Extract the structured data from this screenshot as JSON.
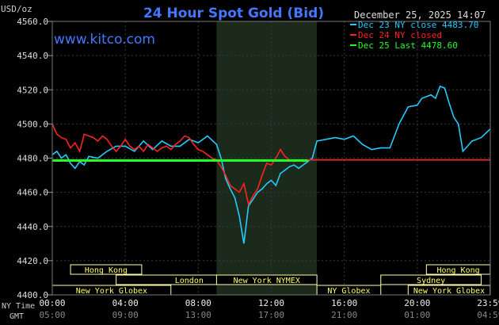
{
  "chart_data": {
    "type": "line",
    "title": "24 Hour Spot Gold (Bid)",
    "website": "www.kitco.com",
    "timestamp": "December 25, 2025 14:07",
    "ylabel": "USD/oz",
    "ylim": [
      4400,
      4560
    ],
    "yticks": [
      "4560.0",
      "4540.0",
      "4520.0",
      "4500.0",
      "4480.0",
      "4460.0",
      "4440.0",
      "4420.0",
      "4400.0"
    ],
    "x_row_labels": {
      "ny": "NY Time",
      "gmt": "GMT"
    },
    "xticks_ny": [
      "00:00",
      "04:00",
      "08:00",
      "12:00",
      "16:00",
      "20:00",
      "23:59"
    ],
    "xticks_gmt": [
      "05:00",
      "09:00",
      "13:00",
      "17:00",
      "21:00",
      "01:00",
      "04:59"
    ],
    "shaded_region_hours": [
      9,
      14.5
    ],
    "legend": [
      {
        "label": "Dec 23 NY close 4483.70",
        "color": "#22ccff"
      },
      {
        "label": "Dec 24 NY closed",
        "color": "#ff2222"
      },
      {
        "label": "Dec 25 Last 4478.60",
        "color": "#22ff22"
      }
    ],
    "series": [
      {
        "name": "Dec 23",
        "color": "#22ccff",
        "x": [
          0,
          0.25,
          0.5,
          0.75,
          1,
          1.25,
          1.5,
          1.75,
          2,
          2.5,
          3,
          3.5,
          4,
          4.5,
          5,
          5.5,
          6,
          6.5,
          7,
          7.5,
          8,
          8.5,
          9,
          9.25,
          9.5,
          9.75,
          10,
          10.25,
          10.5,
          10.75,
          11,
          11.25,
          11.5,
          11.75,
          12,
          12.25,
          12.5,
          12.75,
          13,
          13.25,
          13.5,
          13.75,
          14,
          14.25,
          14.5,
          15,
          15.5,
          16,
          16.5,
          17,
          17.5,
          18,
          18.5,
          19,
          19.5,
          20,
          20.25,
          20.5,
          20.75,
          21,
          21.25,
          21.5,
          21.75,
          22,
          22.25,
          22.5,
          22.75,
          23,
          23.5,
          23.99
        ],
        "y": [
          4482,
          4484,
          4480,
          4482,
          4477,
          4474,
          4478,
          4476,
          4481,
          4480,
          4484,
          4487,
          4487,
          4484,
          4490,
          4485,
          4490,
          4487,
          4487,
          4491,
          4489,
          4493,
          4488,
          4480,
          4468,
          4462,
          4457,
          4446,
          4430,
          4452,
          4456,
          4460,
          4462,
          4465,
          4467,
          4464,
          4471,
          4473,
          4475,
          4476,
          4474,
          4476,
          4478,
          4480,
          4490,
          4491,
          4492,
          4491,
          4493,
          4488,
          4485,
          4486,
          4486,
          4500,
          4510,
          4511,
          4515,
          4516,
          4517,
          4515,
          4522,
          4521,
          4512,
          4504,
          4500,
          4484,
          4487,
          4490,
          4492,
          4497
        ]
      },
      {
        "name": "Dec 24",
        "color": "#ff2222",
        "x": [
          0,
          0.25,
          0.5,
          0.75,
          1,
          1.25,
          1.5,
          1.75,
          2,
          2.25,
          2.5,
          2.75,
          3,
          3.25,
          3.5,
          3.75,
          4,
          4.25,
          4.5,
          4.75,
          5,
          5.25,
          5.5,
          5.75,
          6,
          6.25,
          6.5,
          6.75,
          7,
          7.25,
          7.5,
          7.75,
          8,
          8.25,
          8.5,
          8.75,
          9,
          9.25,
          9.5,
          9.75,
          10,
          10.25,
          10.5,
          10.75,
          11,
          11.25,
          11.5,
          11.75,
          12,
          12.25,
          12.5,
          12.75,
          13,
          13.25,
          13.5,
          13.75,
          14,
          14.5,
          15,
          16,
          17,
          18,
          19,
          20,
          21,
          22,
          23,
          23.99
        ],
        "y": [
          4500,
          4494,
          4492,
          4491,
          4486,
          4489,
          4484,
          4494,
          4493,
          4492,
          4490,
          4493,
          4491,
          4487,
          4484,
          4487,
          4491,
          4487,
          4485,
          4487,
          4484,
          4488,
          4486,
          4484,
          4486,
          4487,
          4485,
          4488,
          4490,
          4493,
          4492,
          4488,
          4485,
          4484,
          4482,
          4480,
          4479,
          4475,
          4470,
          4464,
          4462,
          4460,
          4465,
          4453,
          4458,
          4462,
          4470,
          4477,
          4476,
          4480,
          4485,
          4481,
          4479,
          4478,
          4479,
          4478,
          4479,
          4479,
          4479,
          4479,
          4479,
          4479,
          4479,
          4479,
          4479,
          4479,
          4479,
          4479
        ]
      },
      {
        "name": "Dec 25",
        "color": "#22ff22",
        "x": [
          0,
          14
        ],
        "y": [
          4478.6,
          4478.6
        ]
      }
    ],
    "market_sessions": [
      {
        "label": "Hong Kong",
        "start": 1,
        "end": 4.9
      },
      {
        "label": "London",
        "start": 3.5,
        "end": 11.5
      },
      {
        "label": "New York Globex",
        "start": 0,
        "end": 6.5
      },
      {
        "label": "New York NYMEX",
        "start": 9,
        "end": 14.5
      },
      {
        "label": "NY Globex",
        "start": 14.5,
        "end": 18
      },
      {
        "label": "Hong Kong",
        "start": 20.5,
        "end": 23.99
      },
      {
        "label": "Sydney",
        "start": 18,
        "end": 23.5
      },
      {
        "label": "New York Globex",
        "start": 19.5,
        "end": 23.99
      }
    ]
  }
}
